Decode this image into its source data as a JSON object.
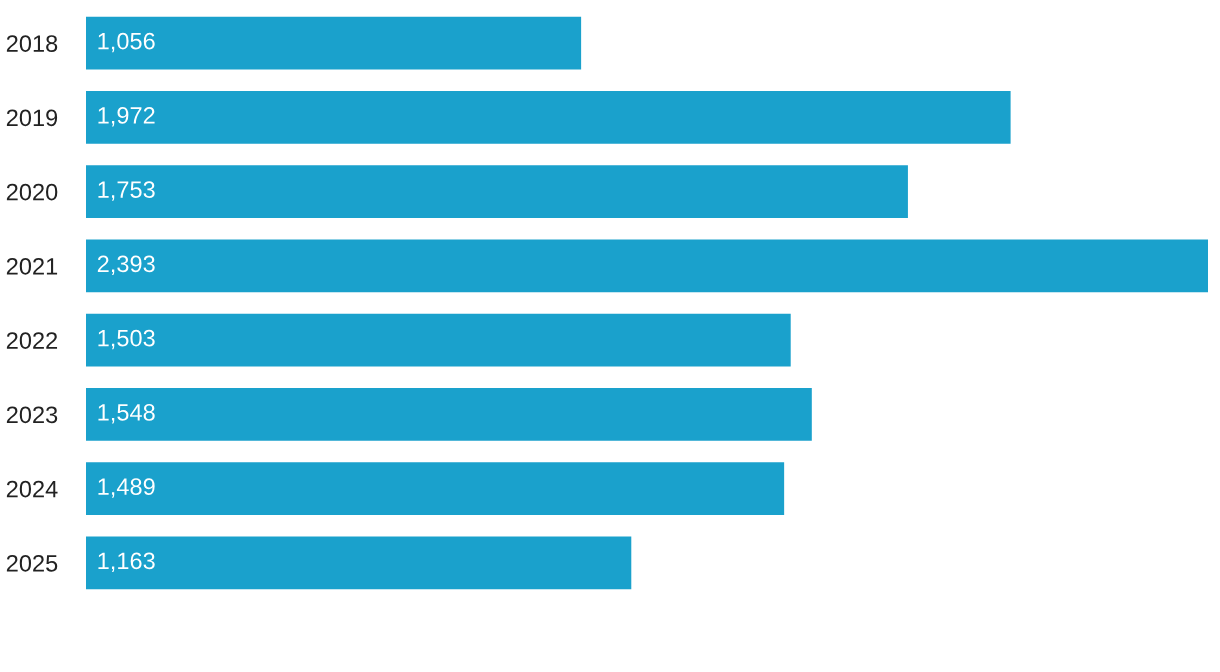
{
  "chart_data": {
    "type": "bar",
    "orientation": "horizontal",
    "categories": [
      "2018",
      "2019",
      "2020",
      "2021",
      "2022",
      "2023",
      "2024",
      "2025"
    ],
    "values": [
      1056,
      1972,
      1753,
      2393,
      1503,
      1548,
      1489,
      1163
    ],
    "value_labels": [
      "1,056",
      "1,972",
      "1,753",
      "2,393",
      "1,503",
      "1,548",
      "1,489",
      "1,163"
    ],
    "color": "#1aa1cc",
    "xlim": [
      0,
      2393
    ],
    "tick_labels": "y",
    "grid": false,
    "legend": false
  }
}
